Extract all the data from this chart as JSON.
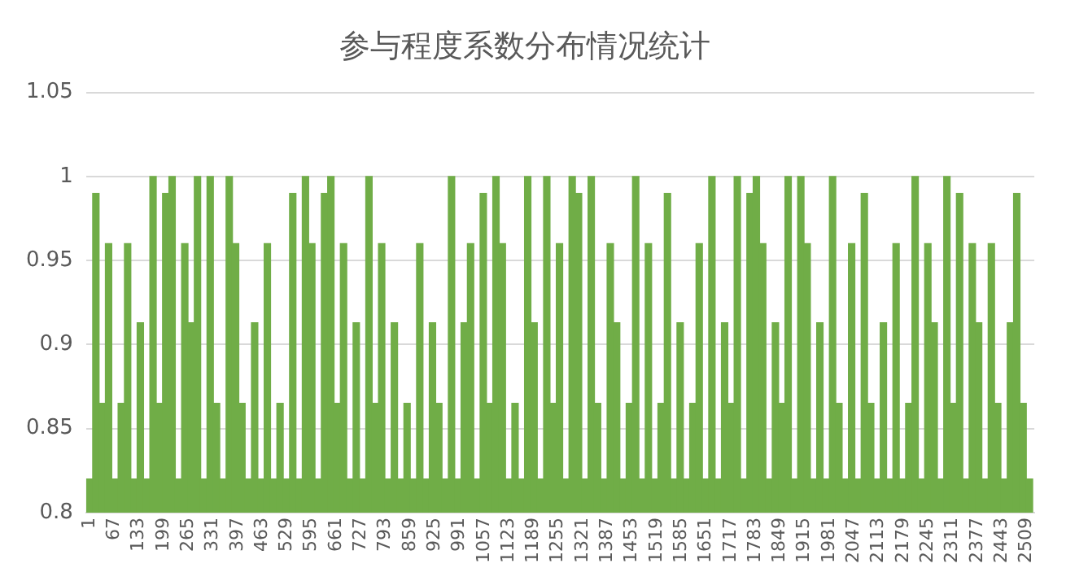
{
  "chart_data": {
    "type": "bar",
    "title": "参与程度系数分布情况统计",
    "x": [
      1,
      18,
      35,
      52,
      69,
      86,
      103,
      120,
      137,
      154,
      171,
      188,
      205,
      222,
      239,
      256,
      273,
      290,
      307,
      324,
      341,
      358,
      375,
      392,
      409,
      426,
      443,
      460,
      477,
      494,
      511,
      528,
      545,
      562,
      579,
      596,
      613,
      630,
      647,
      664,
      681,
      698,
      715,
      732,
      749,
      766,
      783,
      800,
      817,
      834,
      851,
      868,
      885,
      902,
      919,
      936,
      953,
      970,
      987,
      1004,
      1021,
      1038,
      1055,
      1072,
      1089,
      1106,
      1123,
      1140,
      1157,
      1174,
      1191,
      1208,
      1225,
      1242,
      1259,
      1276,
      1293,
      1310,
      1327,
      1344,
      1361,
      1378,
      1395,
      1412,
      1429,
      1446,
      1463,
      1480,
      1497,
      1514,
      1531,
      1548,
      1565,
      1582,
      1599,
      1616,
      1633,
      1650,
      1667,
      1684,
      1701,
      1718,
      1735,
      1752,
      1769,
      1786,
      1803,
      1820,
      1837,
      1854,
      1871,
      1888,
      1905,
      1922,
      1939,
      1956,
      1973,
      1990,
      2007,
      2024,
      2041,
      2058,
      2075,
      2092,
      2109,
      2126,
      2143,
      2160,
      2177,
      2194,
      2211,
      2228,
      2245,
      2262,
      2279,
      2296,
      2313,
      2330,
      2347,
      2364,
      2381,
      2398,
      2415,
      2432,
      2449,
      2466,
      2483,
      2500,
      2517
    ],
    "values": [
      0.82,
      0.99,
      0.865,
      0.96,
      0.82,
      0.865,
      0.96,
      0.82,
      0.913,
      0.82,
      1,
      0.865,
      0.99,
      1,
      0.82,
      0.96,
      0.913,
      1,
      0.82,
      1,
      0.865,
      0.82,
      1,
      0.96,
      0.865,
      0.82,
      0.913,
      0.82,
      0.96,
      0.82,
      0.865,
      0.82,
      0.99,
      0.82,
      1,
      0.96,
      0.82,
      0.99,
      1,
      0.865,
      0.96,
      0.82,
      0.913,
      0.82,
      1,
      0.865,
      0.96,
      0.82,
      0.913,
      0.82,
      0.865,
      0.82,
      0.96,
      0.82,
      0.913,
      0.865,
      0.82,
      1,
      0.82,
      0.913,
      0.96,
      0.82,
      0.99,
      0.865,
      1,
      0.96,
      0.82,
      0.865,
      0.82,
      1,
      0.913,
      0.82,
      1,
      0.865,
      0.96,
      0.82,
      1,
      0.99,
      0.82,
      1,
      0.865,
      0.82,
      0.96,
      0.913,
      0.82,
      0.865,
      1,
      0.82,
      0.96,
      0.82,
      0.865,
      0.99,
      0.82,
      0.913,
      0.82,
      0.865,
      0.96,
      0.82,
      1,
      0.82,
      0.913,
      0.865,
      1,
      0.82,
      0.99,
      1,
      0.96,
      0.82,
      0.913,
      0.865,
      1,
      0.82,
      1,
      0.96,
      0.82,
      0.913,
      0.82,
      1,
      0.865,
      0.82,
      0.96,
      0.82,
      0.99,
      0.865,
      0.82,
      0.913,
      0.82,
      0.96,
      0.82,
      0.865,
      1,
      0.82,
      0.96,
      0.913,
      0.82,
      1,
      0.865,
      0.99,
      0.82,
      0.96,
      0.913,
      0.82,
      0.96,
      0.865,
      0.82,
      0.913,
      0.99,
      0.865,
      0.82
    ],
    "color": "#70ad47",
    "xlim": [
      -8,
      2530
    ],
    "xticks": [
      1,
      67,
      133,
      199,
      265,
      331,
      397,
      463,
      529,
      595,
      661,
      727,
      793,
      859,
      925,
      991,
      1057,
      1123,
      1189,
      1255,
      1321,
      1387,
      1453,
      1519,
      1585,
      1651,
      1717,
      1783,
      1849,
      1915,
      1981,
      2047,
      2113,
      2179,
      2245,
      2311,
      2377,
      2443,
      2509
    ],
    "ylim": [
      0.8,
      1.05
    ],
    "yticks": [
      0.8,
      0.85,
      0.9,
      0.95,
      1,
      1.05
    ],
    "grid": "y"
  }
}
